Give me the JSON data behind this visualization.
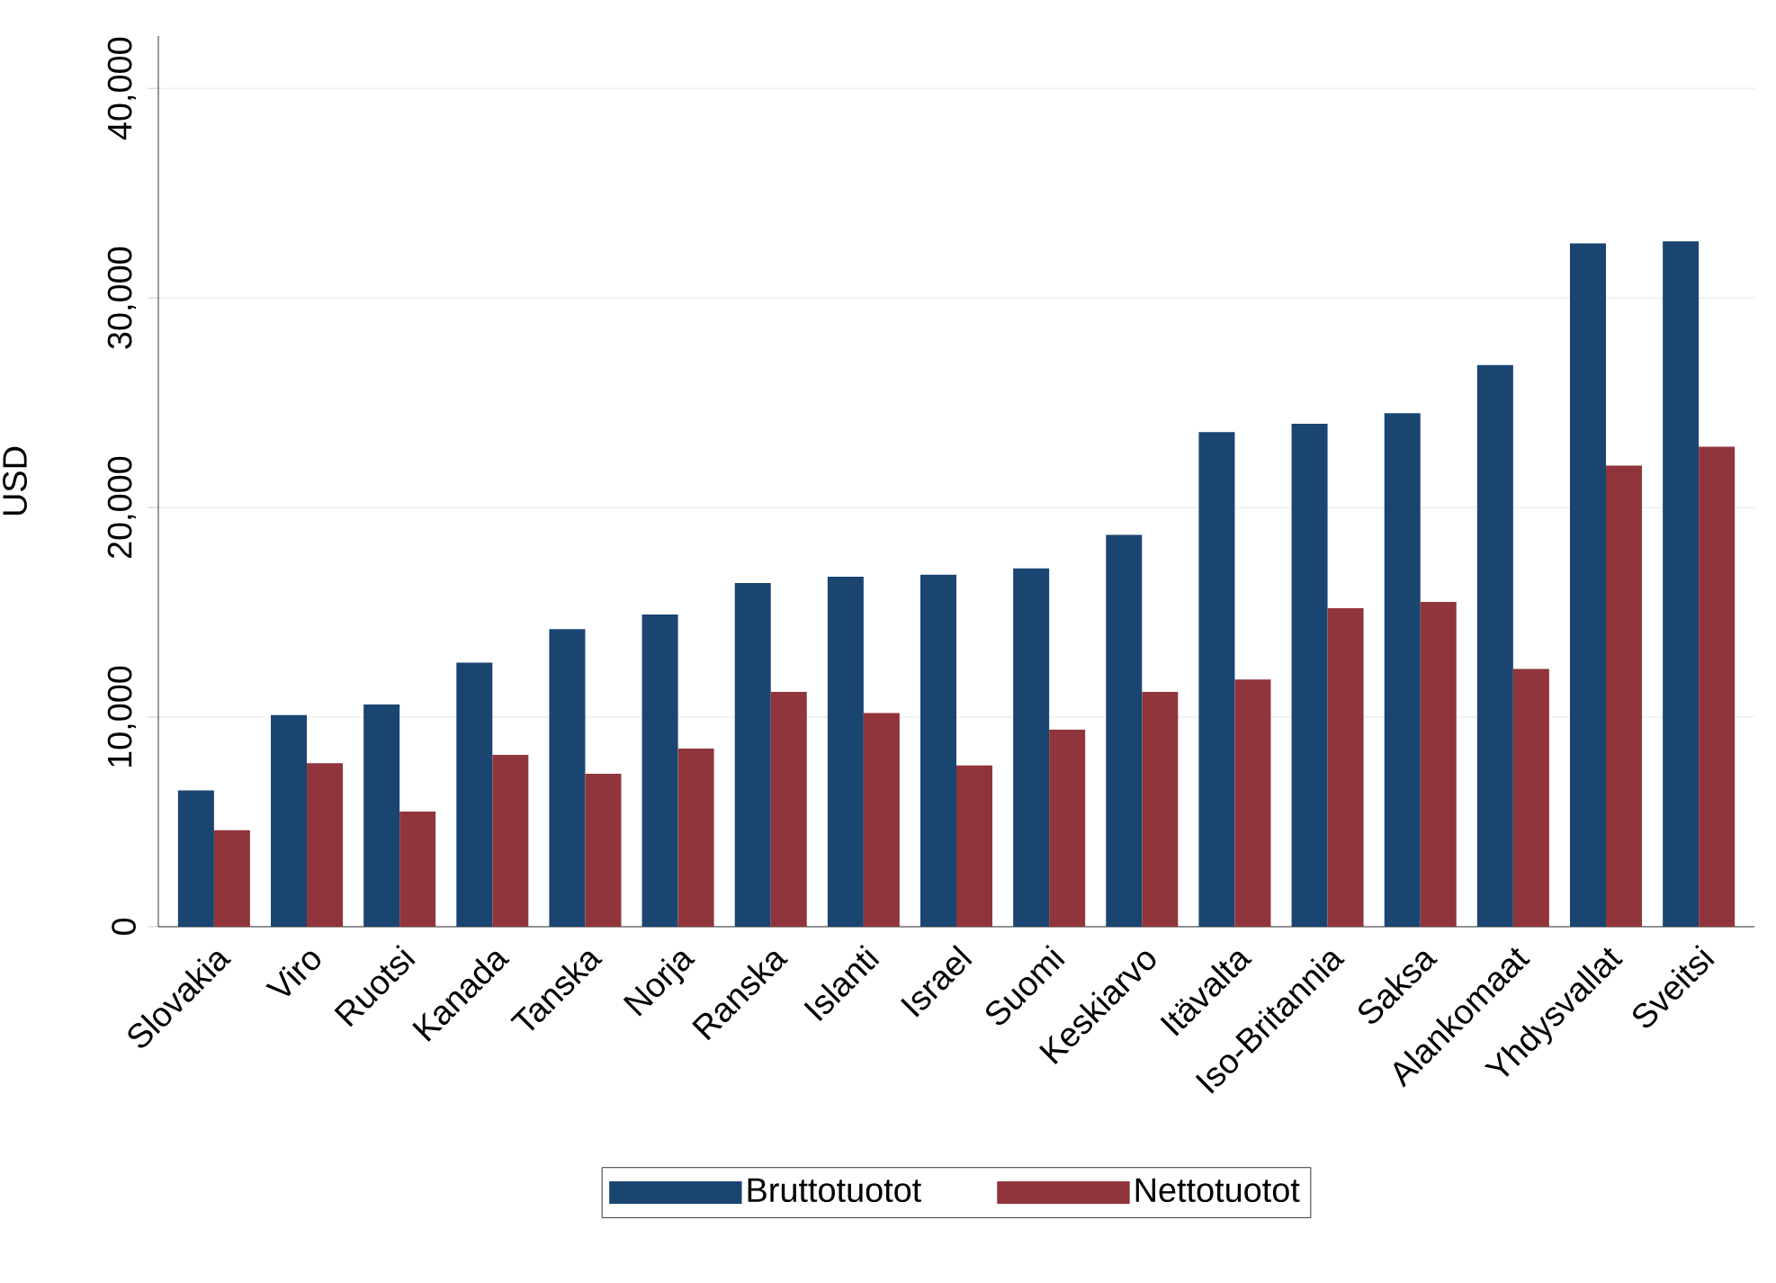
{
  "chart_data": {
    "type": "bar",
    "categories": [
      "Slovakia",
      "Viro",
      "Ruotsi",
      "Kanada",
      "Tanska",
      "Norja",
      "Ranska",
      "Islanti",
      "Israel",
      "Suomi",
      "Keskiarvo",
      "Itävalta",
      "Iso-Britannia",
      "Saksa",
      "Alankomaat",
      "Yhdysvallat",
      "Sveitsi"
    ],
    "series": [
      {
        "name": "Bruttotuotot",
        "color": "#1a4570",
        "values": [
          6500,
          10100,
          10600,
          12600,
          14200,
          14900,
          16400,
          16700,
          16800,
          17100,
          18700,
          23600,
          24000,
          24500,
          26800,
          32600,
          32700
        ]
      },
      {
        "name": "Nettotuotot",
        "color": "#90353b",
        "values": [
          4600,
          7800,
          5500,
          8200,
          7300,
          8500,
          11200,
          10200,
          7700,
          9400,
          11200,
          11800,
          15200,
          15500,
          12300,
          22000,
          22900
        ]
      }
    ],
    "ylabel": "USD",
    "ylim": [
      0,
      42500
    ],
    "yticks": [
      {
        "value": 0,
        "label": "0"
      },
      {
        "value": 10000,
        "label": "10,000"
      },
      {
        "value": 20000,
        "label": "20,000"
      },
      {
        "value": 30000,
        "label": "30,000"
      },
      {
        "value": 40000,
        "label": "40,000"
      }
    ],
    "grid": "y",
    "legend": "bottom"
  }
}
